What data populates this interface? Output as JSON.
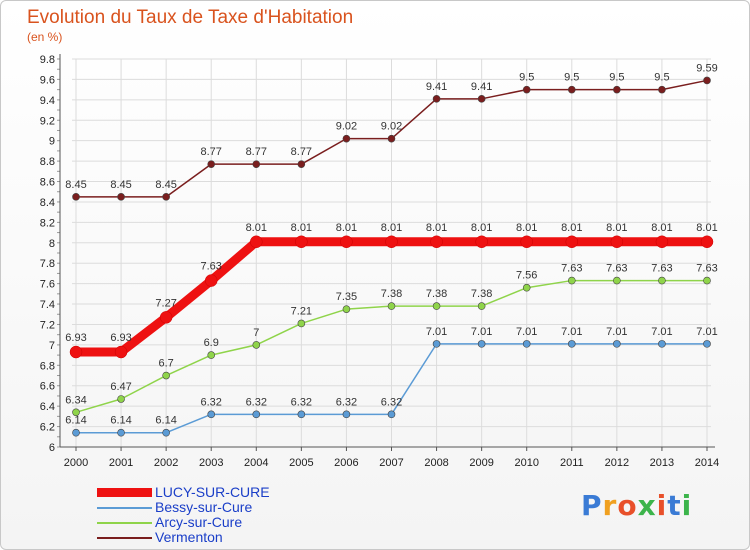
{
  "chart_data": {
    "type": "line",
    "title": "Evolution du Taux de Taxe d'Habitation",
    "subtitle": "(en %)",
    "x": [
      2000,
      2001,
      2002,
      2003,
      2004,
      2005,
      2006,
      2007,
      2008,
      2009,
      2010,
      2011,
      2012,
      2013,
      2014
    ],
    "yticks": [
      "6",
      "6.2",
      "6.4",
      "6.6",
      "6.8",
      "7",
      "7.2",
      "7.4",
      "7.6",
      "7.8",
      "8",
      "8.2",
      "8.4",
      "8.6",
      "8.8",
      "9",
      "9.2",
      "9.4",
      "9.6",
      "9.8"
    ],
    "ylim": [
      6,
      9.8
    ],
    "grid": true,
    "legend_position": "bottom-left",
    "series": [
      {
        "name": "Vermenton",
        "color": "#7a1e1e",
        "values": [
          8.45,
          8.45,
          8.45,
          8.77,
          8.77,
          8.77,
          9.02,
          9.02,
          9.41,
          9.41,
          9.5,
          9.5,
          9.5,
          9.5,
          9.59
        ],
        "labels": [
          "8.45",
          "8.45",
          "8.45",
          "8.77",
          "8.77",
          "8.77",
          "9.02",
          "9.02",
          "9.41",
          "9.41",
          "9.5",
          "9.5",
          "9.5",
          "9.5",
          "9.59"
        ]
      },
      {
        "name": "Arcy-sur-Cure",
        "color": "#8fd44a",
        "values": [
          6.34,
          6.47,
          6.7,
          6.9,
          7,
          7.21,
          7.35,
          7.38,
          7.38,
          7.38,
          7.56,
          7.63,
          7.63,
          7.63,
          7.63
        ],
        "labels": [
          "6.34",
          "6.47",
          "6.7",
          "6.9",
          "7",
          "7.21",
          "7.35",
          "7.38",
          "7.38",
          "7.38",
          "7.56",
          "7.63",
          "7.63",
          "7.63",
          "7.63"
        ]
      },
      {
        "name": "Bessy-sur-Cure",
        "color": "#5b9bd5",
        "values": [
          6.14,
          6.14,
          6.14,
          6.32,
          6.32,
          6.32,
          6.32,
          6.32,
          7.01,
          7.01,
          7.01,
          7.01,
          7.01,
          7.01,
          7.01
        ],
        "labels": [
          "6.14",
          "6.14",
          "6.14",
          "6.32",
          "6.32",
          "6.32",
          "6.32",
          "6.32",
          "7.01",
          "7.01",
          "7.01",
          "7.01",
          "7.01",
          "7.01",
          "7.01"
        ]
      },
      {
        "name": "LUCY-SUR-CURE",
        "color": "#ee1111",
        "values": [
          6.93,
          6.93,
          7.27,
          7.63,
          8.01,
          8.01,
          8.01,
          8.01,
          8.01,
          8.01,
          8.01,
          8.01,
          8.01,
          8.01,
          8.01
        ],
        "labels": [
          "6.93",
          "6.93",
          "7.27",
          "7.63",
          "8.01",
          "8.01",
          "8.01",
          "8.01",
          "8.01",
          "8.01",
          "8.01",
          "8.01",
          "8.01",
          "8.01",
          "8.01"
        ]
      }
    ],
    "legend": [
      "LUCY-SUR-CURE",
      "Bessy-sur-Cure",
      "Arcy-sur-Cure",
      "Vermenton"
    ]
  },
  "logo": {
    "text": "Proxiti"
  }
}
